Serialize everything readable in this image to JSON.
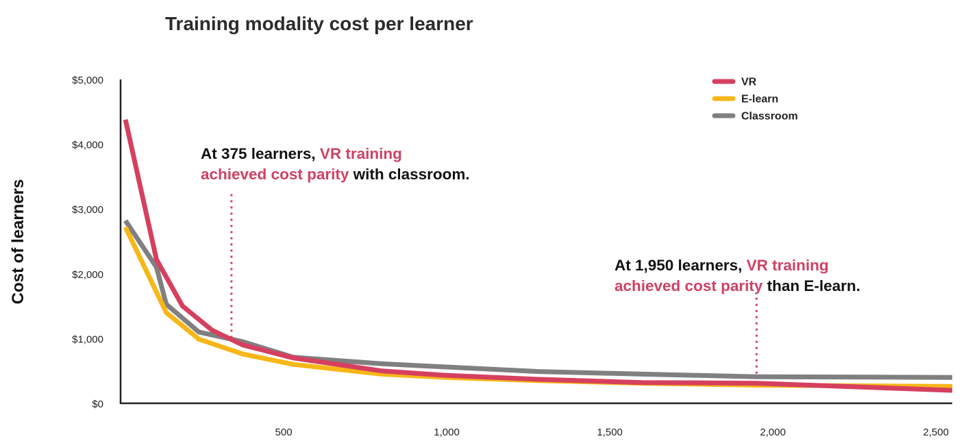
{
  "chart_data": {
    "type": "line",
    "title": "Training modality cost per learner",
    "ylabel": "Cost of learners",
    "xlabel": "",
    "xlim": [
      0,
      2550
    ],
    "ylim": [
      0,
      5000
    ],
    "x_ticks": [
      500,
      1000,
      1500,
      2000,
      2500
    ],
    "x_tick_labels": [
      "500",
      "1,000",
      "1,500",
      "2,000",
      "2,500"
    ],
    "y_ticks": [
      0,
      1000,
      2000,
      3000,
      4000,
      5000
    ],
    "y_tick_labels": [
      "$0",
      "$1,000",
      "$2,000",
      "$3,000",
      "$4,000",
      "$5,000"
    ],
    "grid": false,
    "legend_position": "top-right",
    "series": [
      {
        "name": "Classroom",
        "color": "#808080",
        "points": [
          [
            15,
            2820
          ],
          [
            110,
            2100
          ],
          [
            140,
            1530
          ],
          [
            240,
            1100
          ],
          [
            375,
            950
          ],
          [
            530,
            710
          ],
          [
            800,
            610
          ],
          [
            1000,
            560
          ],
          [
            1280,
            490
          ],
          [
            1600,
            450
          ],
          [
            1950,
            410
          ],
          [
            2550,
            400
          ]
        ]
      },
      {
        "name": "E-learn",
        "color": "#f7b718",
        "points": [
          [
            15,
            2720
          ],
          [
            140,
            1400
          ],
          [
            240,
            990
          ],
          [
            375,
            760
          ],
          [
            530,
            600
          ],
          [
            800,
            450
          ],
          [
            1000,
            400
          ],
          [
            1280,
            350
          ],
          [
            1600,
            310
          ],
          [
            1950,
            280
          ],
          [
            2550,
            260
          ]
        ]
      },
      {
        "name": "VR",
        "color": "#d6405f",
        "points": [
          [
            15,
            4380
          ],
          [
            110,
            2220
          ],
          [
            190,
            1500
          ],
          [
            280,
            1130
          ],
          [
            375,
            900
          ],
          [
            530,
            700
          ],
          [
            800,
            500
          ],
          [
            1000,
            430
          ],
          [
            1280,
            370
          ],
          [
            1600,
            320
          ],
          [
            1950,
            310
          ],
          [
            2550,
            200
          ]
        ]
      }
    ],
    "legend": [
      {
        "name": "VR",
        "color": "#d6405f"
      },
      {
        "name": "E-learn",
        "color": "#f7b718"
      },
      {
        "name": "Classroom",
        "color": "#808080"
      }
    ],
    "annotations": [
      {
        "x": 340,
        "y_start": 3230,
        "y_end": 990,
        "lines": [
          [
            {
              "text": "At 375 learners, ",
              "highlight": false
            },
            {
              "text": "VR training",
              "highlight": true
            }
          ],
          [
            {
              "text": "achieved cost parity",
              "highlight": true
            },
            {
              "text": " with classroom.",
              "highlight": false
            }
          ]
        ]
      },
      {
        "x": 1950,
        "y_start": 1630,
        "y_end": 410,
        "lines": [
          [
            {
              "text": "At 1,950 learners, ",
              "highlight": false
            },
            {
              "text": "VR training",
              "highlight": true
            }
          ],
          [
            {
              "text": "achieved cost parity",
              "highlight": true
            },
            {
              "text": " than E-learn.",
              "highlight": false
            }
          ]
        ]
      }
    ],
    "highlight_color": "#cf4163",
    "annotation_line_color": "#cf4163",
    "axis_color": "#222222"
  }
}
